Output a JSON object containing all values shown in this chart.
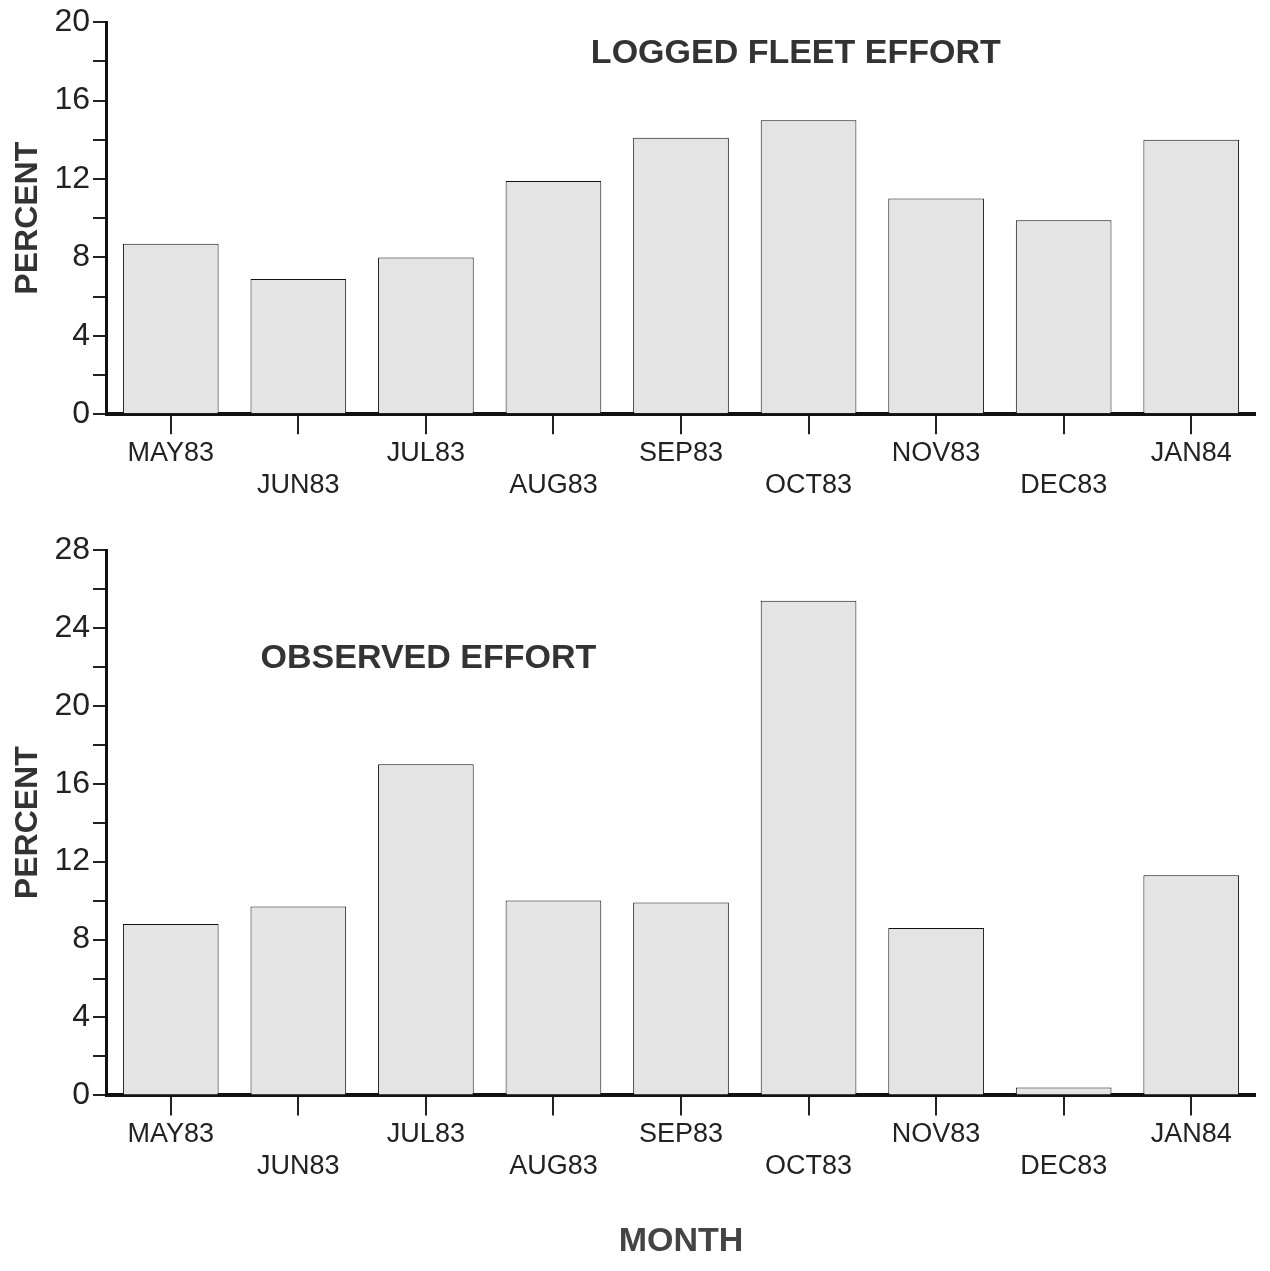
{
  "chart_data": [
    {
      "type": "bar",
      "title": "LOGGED FLEET EFFORT",
      "ylabel": "PERCENT",
      "categories": [
        "MAY83",
        "JUN83",
        "JUL83",
        "AUG83",
        "SEP83",
        "OCT83",
        "NOV83",
        "DEC83",
        "JAN84"
      ],
      "values": [
        8.7,
        6.9,
        8.0,
        11.9,
        14.1,
        15.0,
        11.0,
        9.9,
        14.0
      ],
      "color": "#e4e4e4",
      "ylim": [
        0,
        20
      ],
      "yticks": [
        0,
        {
          "value": 2,
          "label": null
        },
        4,
        {
          "value": 6,
          "label": null
        },
        8,
        {
          "value": 10,
          "label": null
        },
        12,
        {
          "value": 14,
          "label": null
        },
        16,
        {
          "value": 18,
          "label": null
        },
        20
      ],
      "grid": false
    },
    {
      "type": "bar",
      "title": "OBSERVED EFFORT",
      "ylabel": "PERCENT",
      "xlabel": "MONTH",
      "categories": [
        "MAY83",
        "JUN83",
        "JUL83",
        "AUG83",
        "SEP83",
        "OCT83",
        "NOV83",
        "DEC83",
        "JAN84"
      ],
      "values": [
        8.8,
        9.7,
        17.0,
        10.0,
        9.9,
        25.4,
        8.6,
        0.4,
        11.3
      ],
      "color": "#e4e4e4",
      "ylim": [
        0,
        28
      ],
      "yticks": [
        0,
        {
          "value": 2,
          "label": null
        },
        4,
        {
          "value": 6,
          "label": null
        },
        8,
        {
          "value": 10,
          "label": null
        },
        12,
        {
          "value": 14,
          "label": null
        },
        16,
        {
          "value": 18,
          "label": null
        },
        20,
        {
          "value": 22,
          "label": null
        },
        24,
        {
          "value": 26,
          "label": null
        },
        28
      ],
      "grid": false
    }
  ]
}
